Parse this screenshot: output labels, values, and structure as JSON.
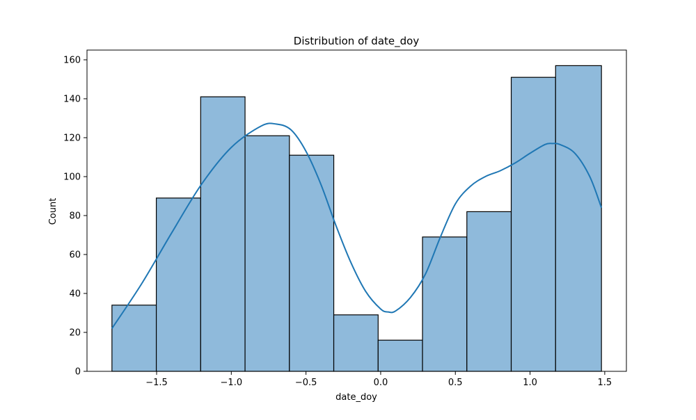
{
  "chart_data": {
    "type": "bar",
    "title": "Distribution of date_doy",
    "xlabel": "date_doy",
    "ylabel": "Count",
    "xlim": [
      -1.966,
      1.645
    ],
    "ylim": [
      0,
      165
    ],
    "x_ticks": [
      -1.5,
      -1.0,
      -0.5,
      0.0,
      0.5,
      1.0,
      1.5
    ],
    "x_tick_labels": [
      "−1.5",
      "−1.0",
      "−0.5",
      "0.0",
      "0.5",
      "1.0",
      "1.5"
    ],
    "y_ticks": [
      0,
      20,
      40,
      60,
      80,
      100,
      120,
      140,
      160
    ],
    "y_tick_labels": [
      "0",
      "20",
      "40",
      "60",
      "80",
      "100",
      "120",
      "140",
      "160"
    ],
    "bin_edges": [
      -1.799,
      -1.502,
      -1.205,
      -0.908,
      -0.611,
      -0.314,
      -0.017,
      0.28,
      0.577,
      0.874,
      1.171,
      1.478
    ],
    "counts": [
      34,
      89,
      141,
      121,
      111,
      29,
      16,
      69,
      82,
      151,
      157
    ],
    "kde": {
      "x": [
        -1.799,
        -1.6,
        -1.4,
        -1.2,
        -1.0,
        -0.8,
        -0.7,
        -0.6,
        -0.5,
        -0.4,
        -0.3,
        -0.2,
        -0.1,
        0.0,
        0.05,
        0.1,
        0.2,
        0.3,
        0.4,
        0.5,
        0.6,
        0.7,
        0.8,
        0.9,
        1.0,
        1.1,
        1.15,
        1.2,
        1.3,
        1.4,
        1.478
      ],
      "y": [
        22,
        45,
        71,
        96,
        115,
        126,
        127,
        124,
        113,
        96,
        75,
        56,
        41,
        32,
        30.5,
        31,
        38,
        50,
        69,
        86,
        95,
        100,
        103,
        107,
        112,
        116.5,
        117,
        116.5,
        112,
        100,
        84
      ]
    },
    "colors": {
      "bar_fill": "#8fbadb",
      "bar_edge": "#000000",
      "kde_line": "#1f77b4"
    },
    "grid": false,
    "legend": "none"
  }
}
